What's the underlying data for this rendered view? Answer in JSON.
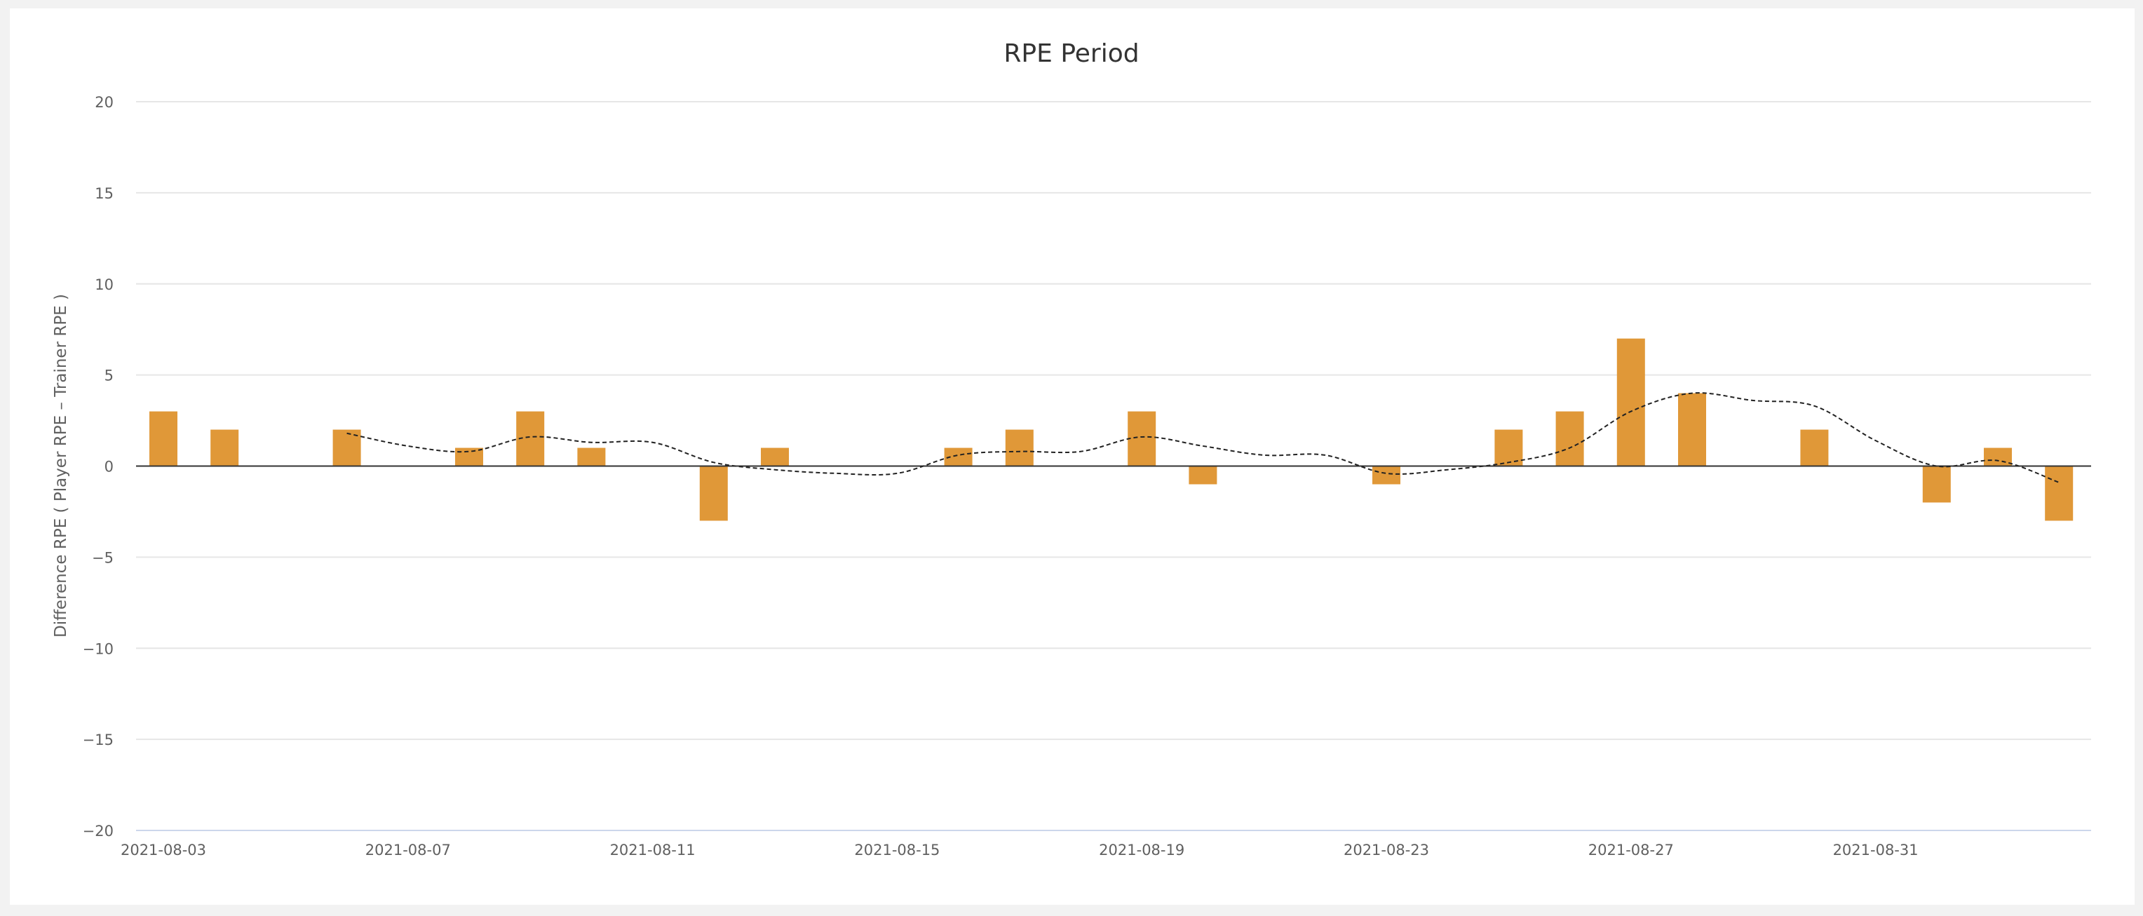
{
  "chart_data": {
    "type": "bar",
    "title": "RPE Period",
    "xlabel": "",
    "ylabel": "Difference RPE ( Player RPE – Trainer RPE )",
    "ylim": [
      -20,
      20
    ],
    "yticks": [
      20,
      15,
      10,
      5,
      0,
      -5,
      -10,
      -15,
      -20
    ],
    "ytick_labels": [
      "20",
      "15",
      "10",
      "5",
      "0",
      "−5",
      "−10",
      "−15",
      "−20"
    ],
    "x_start": "2021-08-03",
    "x_end": "2021-09-03",
    "xticks": [
      "2021-08-03",
      "2021-08-07",
      "2021-08-11",
      "2021-08-15",
      "2021-08-19",
      "2021-08-23",
      "2021-08-27",
      "2021-08-31"
    ],
    "grid": true,
    "colors": {
      "bar": "#e09838",
      "trend": "#222222",
      "grid": "#e6e6e6",
      "zero_line": "#333333"
    },
    "series": [
      {
        "name": "Difference RPE",
        "type": "bar",
        "points": [
          {
            "date": "2021-08-03",
            "value": 3
          },
          {
            "date": "2021-08-04",
            "value": 2
          },
          {
            "date": "2021-08-06",
            "value": 2
          },
          {
            "date": "2021-08-08",
            "value": 1
          },
          {
            "date": "2021-08-09",
            "value": 3
          },
          {
            "date": "2021-08-10",
            "value": 1
          },
          {
            "date": "2021-08-12",
            "value": -3
          },
          {
            "date": "2021-08-13",
            "value": 1
          },
          {
            "date": "2021-08-16",
            "value": 1
          },
          {
            "date": "2021-08-17",
            "value": 2
          },
          {
            "date": "2021-08-19",
            "value": 3
          },
          {
            "date": "2021-08-20",
            "value": -1
          },
          {
            "date": "2021-08-23",
            "value": -1
          },
          {
            "date": "2021-08-25",
            "value": 2
          },
          {
            "date": "2021-08-26",
            "value": 3
          },
          {
            "date": "2021-08-27",
            "value": 7
          },
          {
            "date": "2021-08-28",
            "value": 4
          },
          {
            "date": "2021-08-30",
            "value": 2
          },
          {
            "date": "2021-09-01",
            "value": -2
          },
          {
            "date": "2021-09-02",
            "value": 1
          },
          {
            "date": "2021-09-03",
            "value": -3
          }
        ]
      },
      {
        "name": "Trend",
        "type": "line",
        "style": "dashed",
        "points": [
          {
            "date": "2021-08-06",
            "value": 1.8
          },
          {
            "date": "2021-08-07",
            "value": 1.1
          },
          {
            "date": "2021-08-08",
            "value": 0.8
          },
          {
            "date": "2021-08-09",
            "value": 1.6
          },
          {
            "date": "2021-08-10",
            "value": 1.3
          },
          {
            "date": "2021-08-11",
            "value": 1.3
          },
          {
            "date": "2021-08-12",
            "value": 0.2
          },
          {
            "date": "2021-08-13",
            "value": -0.2
          },
          {
            "date": "2021-08-14",
            "value": -0.4
          },
          {
            "date": "2021-08-15",
            "value": -0.4
          },
          {
            "date": "2021-08-16",
            "value": 0.6
          },
          {
            "date": "2021-08-17",
            "value": 0.8
          },
          {
            "date": "2021-08-18",
            "value": 0.8
          },
          {
            "date": "2021-08-19",
            "value": 1.6
          },
          {
            "date": "2021-08-20",
            "value": 1.1
          },
          {
            "date": "2021-08-21",
            "value": 0.6
          },
          {
            "date": "2021-08-22",
            "value": 0.6
          },
          {
            "date": "2021-08-23",
            "value": -0.4
          },
          {
            "date": "2021-08-24",
            "value": -0.2
          },
          {
            "date": "2021-08-25",
            "value": 0.2
          },
          {
            "date": "2021-08-26",
            "value": 1.0
          },
          {
            "date": "2021-08-27",
            "value": 3.0
          },
          {
            "date": "2021-08-28",
            "value": 4.0
          },
          {
            "date": "2021-08-29",
            "value": 3.6
          },
          {
            "date": "2021-08-30",
            "value": 3.3
          },
          {
            "date": "2021-08-31",
            "value": 1.4
          },
          {
            "date": "2021-09-01",
            "value": 0.0
          },
          {
            "date": "2021-09-02",
            "value": 0.3
          },
          {
            "date": "2021-09-03",
            "value": -0.9
          }
        ]
      }
    ]
  }
}
